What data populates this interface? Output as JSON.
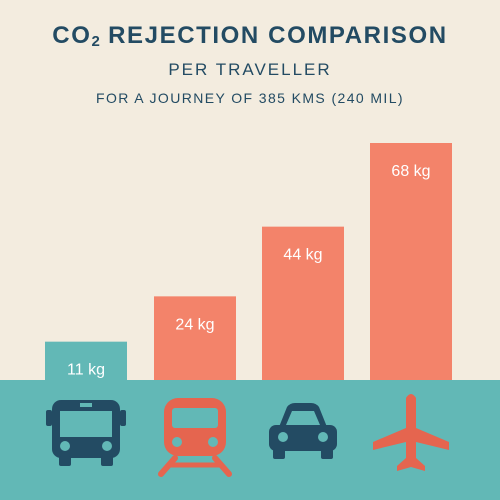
{
  "header": {
    "title_prefix": "CO",
    "title_sub": "2",
    "title_suffix": " REJECTION COMPARISON",
    "subtitle": "PER TRAVELLER",
    "subtitle2": "FOR A JOURNEY OF 385 KMS (240 MIL)"
  },
  "colors": {
    "background": "#f3ecdf",
    "ground": "#62b8b6",
    "bar_primary": "#f3836a",
    "bar_accent": "#62b8b6",
    "icon_blue": "#234b63",
    "icon_coral": "#e5654f",
    "title": "#234b63"
  },
  "chart_data": {
    "type": "bar",
    "title": "CO2 REJECTION COMPARISON",
    "unit": "kg",
    "categories": [
      "bus",
      "train",
      "car",
      "plane"
    ],
    "values": [
      11,
      24,
      44,
      68
    ],
    "labels": [
      "11 kg",
      "24 kg",
      "44 kg",
      "68 kg"
    ],
    "ylim": [
      0,
      68
    ],
    "icons": [
      "bus-icon",
      "train-icon",
      "car-icon",
      "plane-icon"
    ],
    "icon_colors": [
      "#234b63",
      "#e5654f",
      "#234b63",
      "#e5654f"
    ],
    "bar_colors": [
      "#62b8b6",
      "#f3836a",
      "#f3836a",
      "#f3836a"
    ]
  }
}
